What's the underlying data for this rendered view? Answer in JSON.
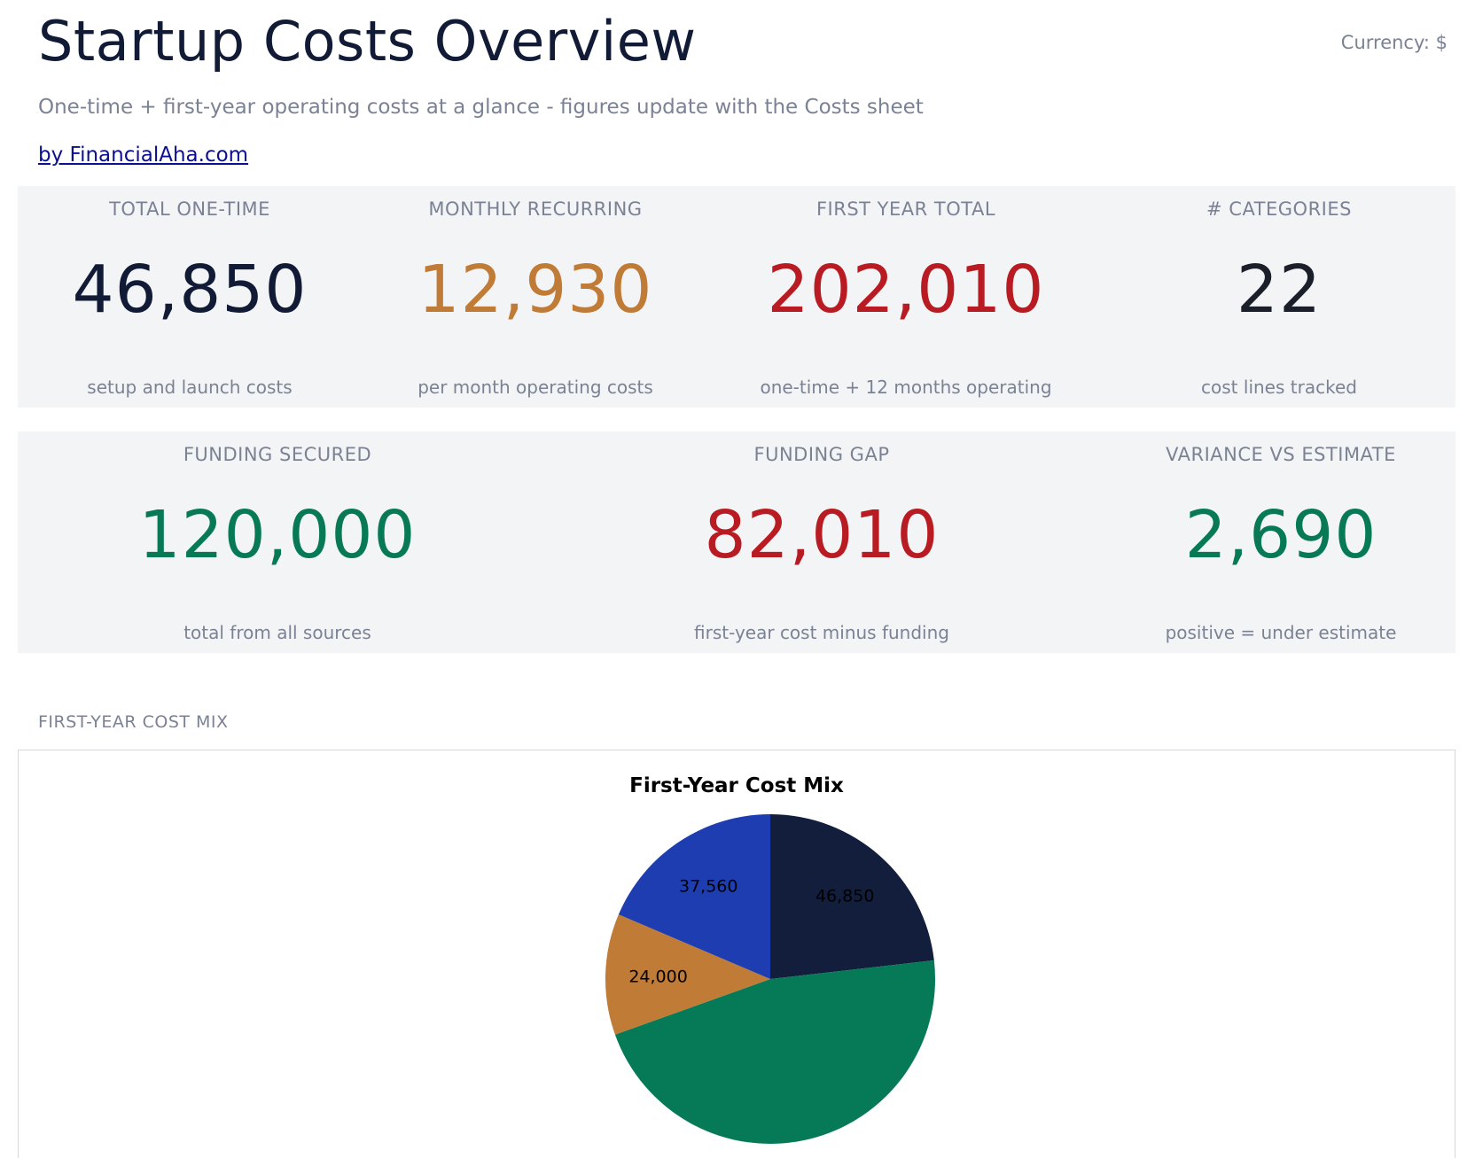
{
  "header": {
    "title": "Startup Costs Overview",
    "currency": "Currency: $",
    "subtitle": "One-time + first-year operating costs at a glance - figures update with the Costs sheet",
    "byline": "by FinancialAha.com"
  },
  "kpis_row1": [
    {
      "label": "TOTAL ONE-TIME",
      "value": "46,850",
      "note": "setup and launch costs",
      "color": "#111b36"
    },
    {
      "label": "MONTHLY RECURRING",
      "value": "12,930",
      "note": "per month operating costs",
      "color": "#c07b36"
    },
    {
      "label": "FIRST YEAR TOTAL",
      "value": "202,010",
      "note": "one-time + 12 months operating",
      "color": "#b81c22"
    },
    {
      "label": "# CATEGORIES",
      "value": "22",
      "note": "cost lines tracked",
      "color": "#1b1f2a"
    }
  ],
  "kpis_row2": [
    {
      "label": "FUNDING SECURED",
      "value": "120,000",
      "note": "total from all sources",
      "color": "#077a55"
    },
    {
      "label": "FUNDING GAP",
      "value": "82,010",
      "note": "first-year cost minus funding",
      "color": "#b81c22"
    },
    {
      "label": "VARIANCE VS ESTIMATE",
      "value": "2,690",
      "note": "positive = under estimate",
      "color": "#077a55"
    }
  ],
  "section": {
    "cost_mix_label": "FIRST-YEAR COST MIX"
  },
  "chart_data": {
    "type": "pie",
    "title": "First-Year Cost Mix",
    "slices": [
      {
        "label": "46,850",
        "value": 46850,
        "color": "#121e3b"
      },
      {
        "label": "",
        "value": 93600,
        "color": "#067a57"
      },
      {
        "label": "24,000",
        "value": 24000,
        "color": "#c07b36"
      },
      {
        "label": "37,560",
        "value": 37560,
        "color": "#1e3db1"
      }
    ],
    "start_angle_deg": 0,
    "direction": "clockwise"
  }
}
